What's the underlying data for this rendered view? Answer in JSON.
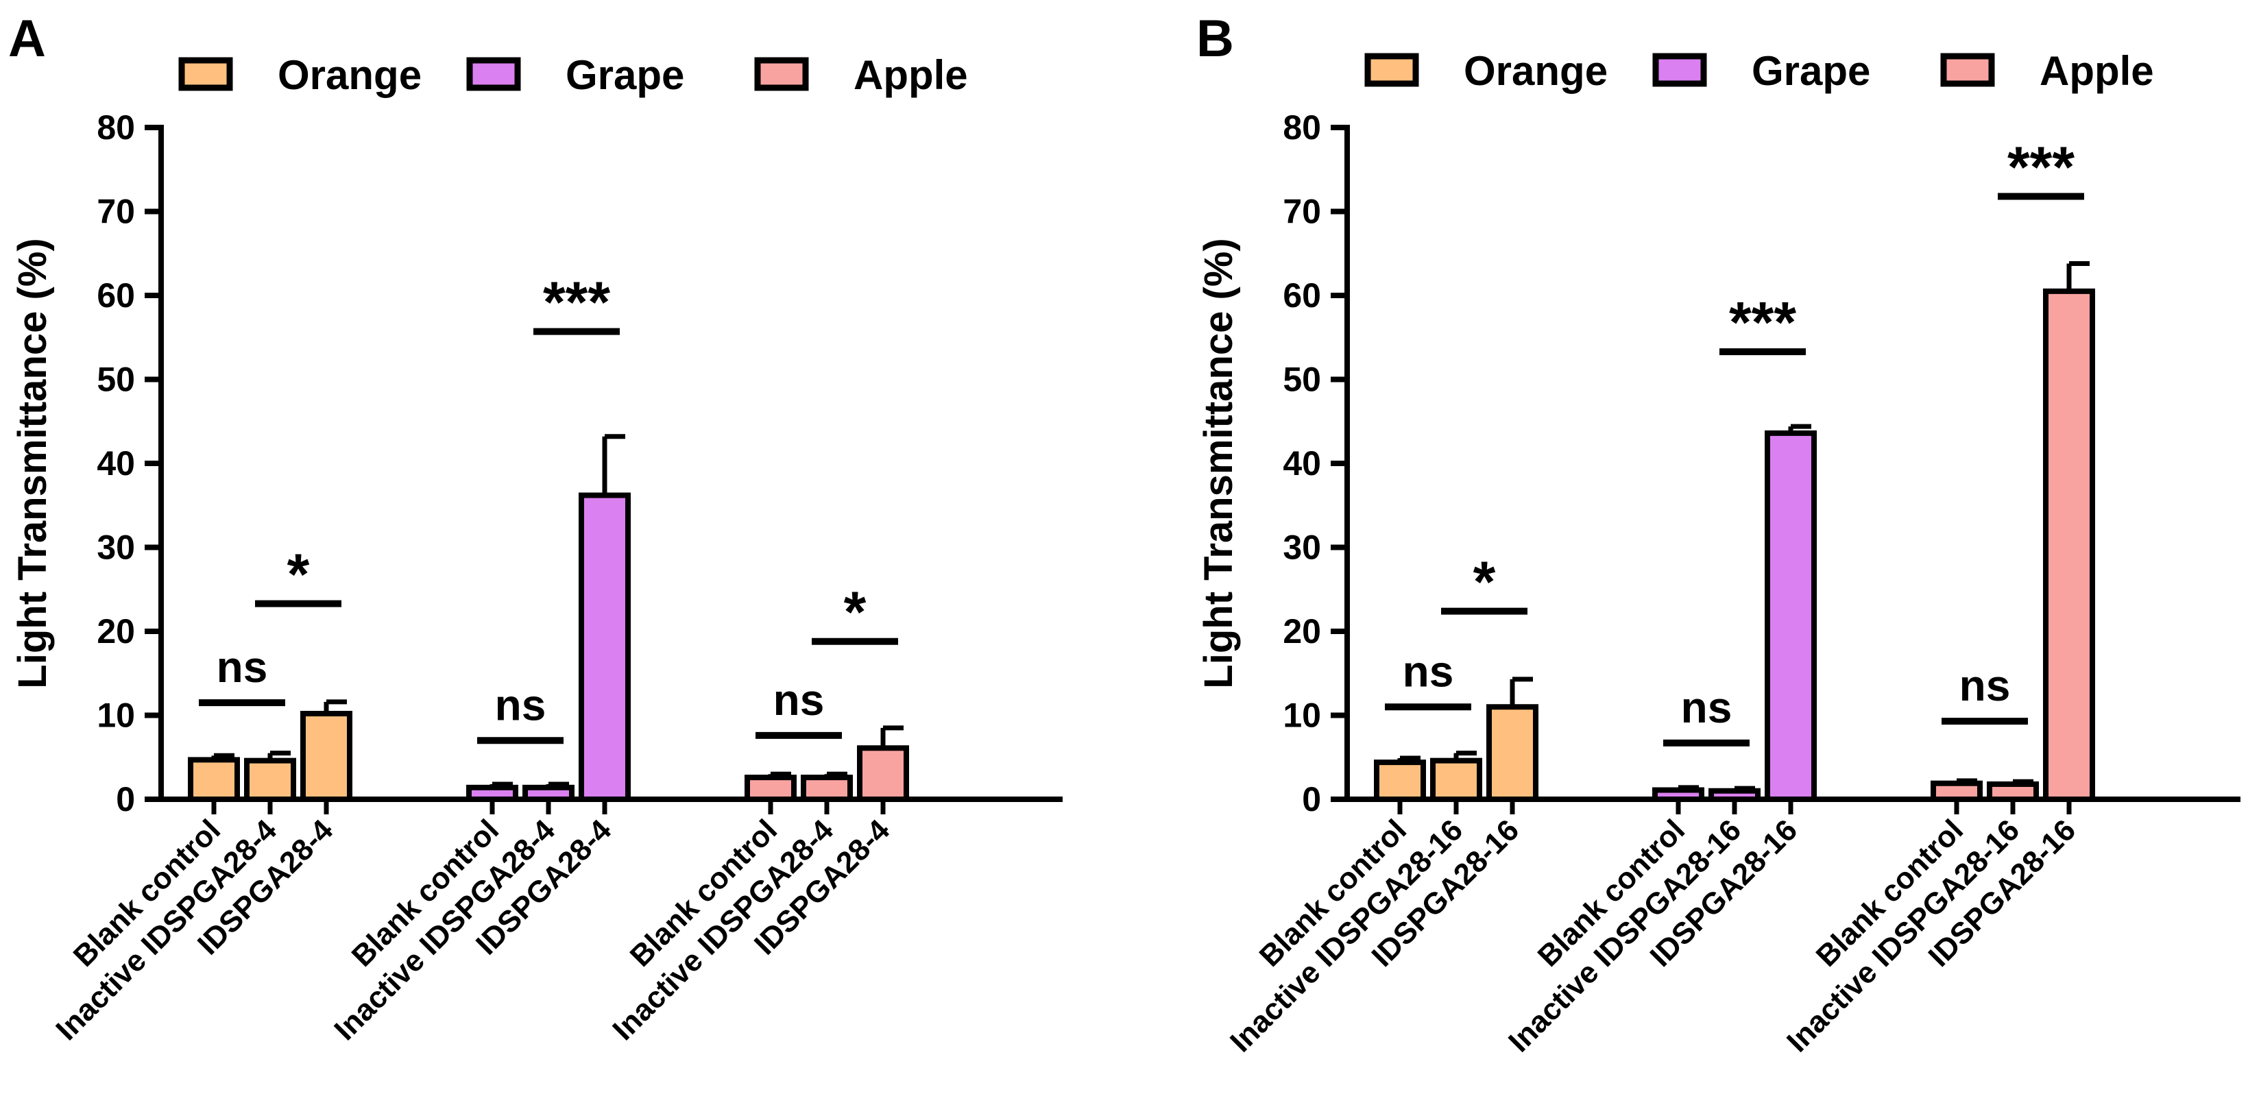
{
  "chart_data": [
    {
      "panel": "A",
      "type": "bar",
      "ylabel": "Light Transmittance (%)",
      "ylim": [
        0,
        80
      ],
      "yticks": [
        0,
        10,
        20,
        30,
        40,
        50,
        60,
        70,
        80
      ],
      "legend": [
        {
          "name": "Orange",
          "color": "#FFC07F"
        },
        {
          "name": "Grape",
          "color": "#DA80F0"
        },
        {
          "name": "Apple",
          "color": "#F9A3A0"
        }
      ],
      "groups": [
        {
          "name": "Orange",
          "color": "#FFC07F",
          "categories": [
            "Blank control",
            "Inactive IDSPGA28-4",
            "IDSPGA28-4"
          ],
          "values": [
            4.7,
            4.6,
            10.2
          ],
          "errors": [
            0.5,
            0.9,
            1.4
          ],
          "comparisons": [
            {
              "from": 0,
              "to": 1,
              "label": "ns",
              "y": 11.5
            },
            {
              "from": 1,
              "to": 2,
              "label": "*",
              "y": 23.3
            }
          ]
        },
        {
          "name": "Grape",
          "color": "#DA80F0",
          "categories": [
            "Blank control",
            "Inactive IDSPGA28-4",
            "IDSPGA28-4"
          ],
          "values": [
            1.4,
            1.4,
            36.2
          ],
          "errors": [
            0.4,
            0.4,
            7.0
          ],
          "comparisons": [
            {
              "from": 0,
              "to": 1,
              "label": "ns",
              "y": 7.0
            },
            {
              "from": 1,
              "to": 2,
              "label": "***",
              "y": 55.7
            }
          ]
        },
        {
          "name": "Apple",
          "color": "#F9A3A0",
          "categories": [
            "Blank control",
            "Inactive IDSPGA28-4",
            "IDSPGA28-4"
          ],
          "values": [
            2.6,
            2.6,
            6.1
          ],
          "errors": [
            0.4,
            0.4,
            2.4
          ],
          "comparisons": [
            {
              "from": 0,
              "to": 1,
              "label": "ns",
              "y": 7.6
            },
            {
              "from": 1,
              "to": 2,
              "label": "*",
              "y": 18.8
            }
          ]
        }
      ]
    },
    {
      "panel": "B",
      "type": "bar",
      "ylabel": "Light Transmittance (%)",
      "ylim": [
        0,
        80
      ],
      "yticks": [
        0,
        10,
        20,
        30,
        40,
        50,
        60,
        70,
        80
      ],
      "legend": [
        {
          "name": "Orange",
          "color": "#FFC07F"
        },
        {
          "name": "Grape",
          "color": "#DA80F0"
        },
        {
          "name": "Apple",
          "color": "#F9A3A0"
        }
      ],
      "groups": [
        {
          "name": "Orange",
          "color": "#FFC07F",
          "categories": [
            "Blank control",
            "Inactive IDSPGA28-16",
            "IDSPGA28-16"
          ],
          "values": [
            4.4,
            4.6,
            11.0
          ],
          "errors": [
            0.5,
            0.9,
            3.3
          ],
          "comparisons": [
            {
              "from": 0,
              "to": 1,
              "label": "ns",
              "y": 11.0
            },
            {
              "from": 1,
              "to": 2,
              "label": "*",
              "y": 22.4
            }
          ]
        },
        {
          "name": "Grape",
          "color": "#DA80F0",
          "categories": [
            "Blank control",
            "Inactive IDSPGA28-16",
            "IDSPGA28-16"
          ],
          "values": [
            1.1,
            1.0,
            43.6
          ],
          "errors": [
            0.3,
            0.3,
            0.8
          ],
          "comparisons": [
            {
              "from": 0,
              "to": 1,
              "label": "ns",
              "y": 6.7
            },
            {
              "from": 1,
              "to": 2,
              "label": "***",
              "y": 53.3
            }
          ]
        },
        {
          "name": "Apple",
          "color": "#F9A3A0",
          "categories": [
            "Blank control",
            "Inactive IDSPGA28-16",
            "IDSPGA28-16"
          ],
          "values": [
            1.9,
            1.8,
            60.5
          ],
          "errors": [
            0.3,
            0.3,
            3.3
          ],
          "comparisons": [
            {
              "from": 0,
              "to": 1,
              "label": "ns",
              "y": 9.3
            },
            {
              "from": 1,
              "to": 2,
              "label": "***",
              "y": 71.8
            }
          ]
        }
      ]
    }
  ]
}
